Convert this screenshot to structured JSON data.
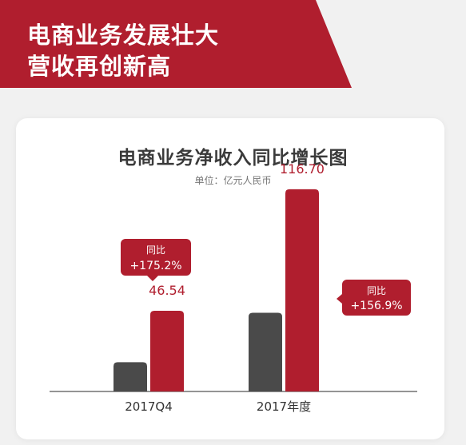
{
  "header": {
    "line1": "电商业务发展壮大",
    "line2": "营收再创新高"
  },
  "colors": {
    "brand_red": "#b01e2e",
    "dark_bar": "#4a4a4a",
    "background": "#f1f1f1",
    "card": "#ffffff"
  },
  "chart_data": {
    "type": "bar",
    "title": "电商业务净收入同比增长图",
    "subtitle": "单位：亿元人民币",
    "categories": [
      "2017Q4",
      "2017年度"
    ],
    "series": [
      {
        "values": [
          16.9,
          45.4
        ],
        "color": "#4a4a4a"
      },
      {
        "values": [
          46.54,
          116.7
        ],
        "color": "#b01e2e"
      }
    ],
    "value_labels": [
      "46.54",
      "116.70"
    ],
    "callouts": [
      {
        "label": "同比",
        "value": "+175.2%"
      },
      {
        "label": "同比",
        "value": "+156.9%"
      }
    ],
    "ylim": [
      0,
      130
    ],
    "grid": false
  }
}
